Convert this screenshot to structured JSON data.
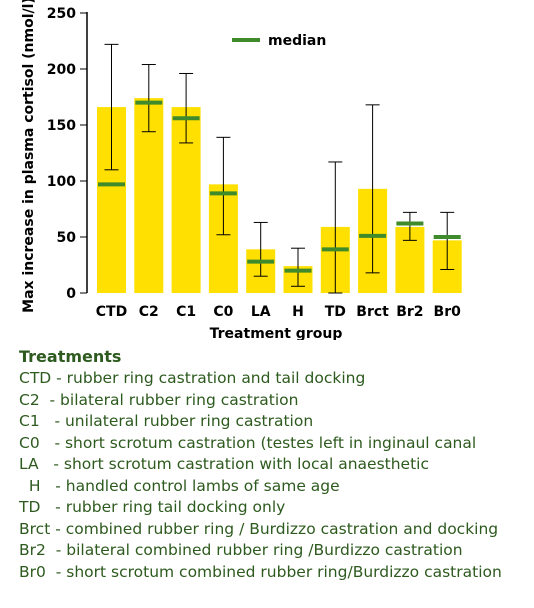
{
  "chart_data": {
    "type": "bar",
    "categories": [
      "CTD",
      "C2",
      "C1",
      "C0",
      "LA",
      "H",
      "TD",
      "Brct",
      "Br2",
      "Br0"
    ],
    "values": [
      166,
      174,
      166,
      97,
      39,
      24,
      59,
      93,
      59,
      47
    ],
    "median": [
      97,
      170,
      156,
      89,
      28,
      20,
      39,
      51,
      62,
      50
    ],
    "error_low": [
      110,
      144,
      134,
      52,
      15,
      6,
      0,
      18,
      47,
      21
    ],
    "error_high": [
      222,
      204,
      196,
      139,
      63,
      40,
      117,
      168,
      72,
      72
    ],
    "xlabel": "Treatment group",
    "ylabel": "Max increase in plasma cortisol (nmol/l)",
    "ylim": [
      0,
      250
    ],
    "yticks": [
      0,
      50,
      100,
      150,
      200,
      250
    ],
    "legend": {
      "label": "median",
      "position": "top-center"
    },
    "grid": false,
    "colors": {
      "bar": "#ffe000",
      "median": "#3f8a2a",
      "error": "#000000"
    }
  },
  "treatments": {
    "heading": "Treatments",
    "items": [
      "CTD - rubber ring castration and tail docking",
      "C2  - bilateral rubber ring castration",
      "C1   - unilateral rubber ring castration",
      "C0   - short scrotum castration (testes left in inginaul canal",
      "LA   - short scrotum castration with local anaesthetic",
      "  H   - handled control lambs of same age",
      "TD   - rubber ring tail docking only",
      "Brct - combined rubber ring / Burdizzo castration and docking",
      "Br2  - bilateral combined rubber ring /Burdizzo castration",
      "Br0  - short scrotum combined rubber ring/Burdizzo castration"
    ]
  }
}
